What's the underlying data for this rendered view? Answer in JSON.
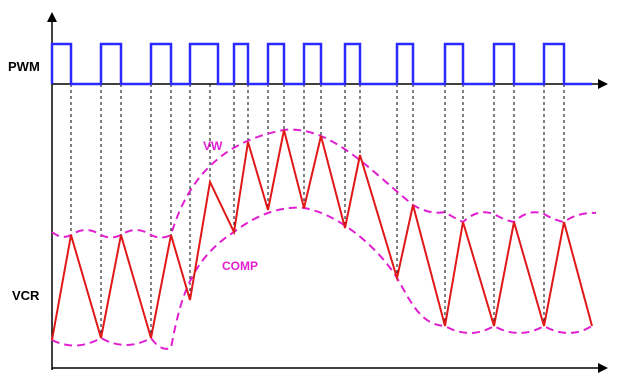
{
  "labels": {
    "pwm": "PWM",
    "vcr": "VCR",
    "vw": "VW",
    "comp": "COMP"
  },
  "colors": {
    "pwm_wave": "#2b2bff",
    "ramp": "#e01818",
    "envelope": "#e020d0",
    "axis": "#000000",
    "guide": "#000000"
  }
}
